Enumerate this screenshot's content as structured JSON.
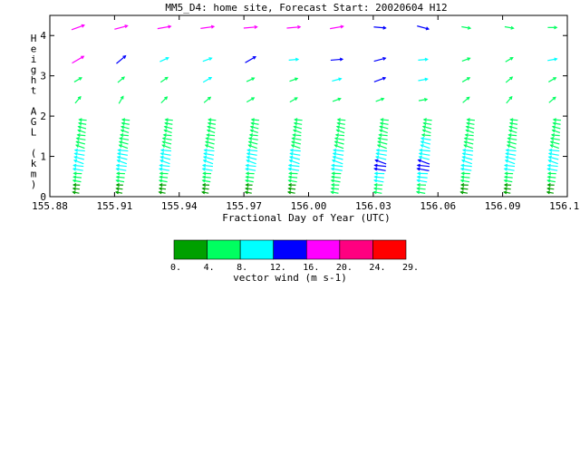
{
  "chart_data": {
    "type": "vector-field",
    "title": "MM5_D4: home site,  Forecast Start: 20020604 H12",
    "xlabel": "Fractional Day of Year (UTC)",
    "ylabel": "Height AGL (km)",
    "xlim": [
      155.88,
      156.12
    ],
    "ylim": [
      0,
      4.5
    ],
    "x_ticks": [
      "155.88",
      "155.91",
      "155.94",
      "155.97",
      "156.00",
      "156.03",
      "156.06",
      "156.09",
      "156.12"
    ],
    "y_ticks": [
      "0",
      "1",
      "2",
      "3",
      "4"
    ],
    "colorbar": {
      "label": "vector wind (m s-1)",
      "ticks": [
        "0.",
        "4.",
        "8.",
        "12.",
        "16.",
        "20.",
        "24.",
        "29."
      ],
      "colors": [
        "#00a000",
        "#00ff60",
        "#00ffff",
        "#0000ff",
        "#ff00ff",
        "#ff0080",
        "#ff0000"
      ]
    },
    "columns": [
      155.893,
      155.913,
      155.933,
      155.953,
      155.973,
      155.993,
      156.013,
      156.033,
      156.053,
      156.073,
      156.093,
      156.113
    ],
    "layers": [
      {
        "level": "upper",
        "heights": [
          4.2,
          3.4,
          2.9,
          2.4
        ],
        "speeds": [
          [
            16,
            16,
            16,
            16,
            16,
            16,
            16,
            13,
            13,
            7,
            7,
            7
          ],
          [
            16,
            13,
            8,
            8,
            13,
            8,
            13,
            13,
            8,
            6,
            6,
            8
          ],
          [
            6,
            6,
            6,
            8,
            6,
            6,
            8,
            13,
            8,
            6,
            6,
            6
          ],
          [
            6,
            6,
            6,
            6,
            6,
            6,
            6,
            6,
            6,
            6,
            6,
            6
          ]
        ],
        "angles": [
          [
            20,
            15,
            10,
            8,
            5,
            5,
            10,
            -5,
            -15,
            -10,
            -10,
            0
          ],
          [
            30,
            40,
            25,
            20,
            30,
            5,
            5,
            15,
            5,
            20,
            30,
            10
          ],
          [
            30,
            40,
            35,
            30,
            25,
            20,
            15,
            20,
            10,
            30,
            40,
            30
          ],
          [
            50,
            60,
            45,
            40,
            30,
            30,
            20,
            20,
            10,
            40,
            50,
            40
          ]
        ]
      },
      {
        "level": "lower",
        "speed_profile": [
          2,
          5,
          9,
          9,
          7,
          5,
          4
        ],
        "column_boost": [
          0,
          0,
          0,
          0,
          0,
          1,
          2,
          3,
          4,
          1,
          0,
          0
        ]
      }
    ]
  }
}
